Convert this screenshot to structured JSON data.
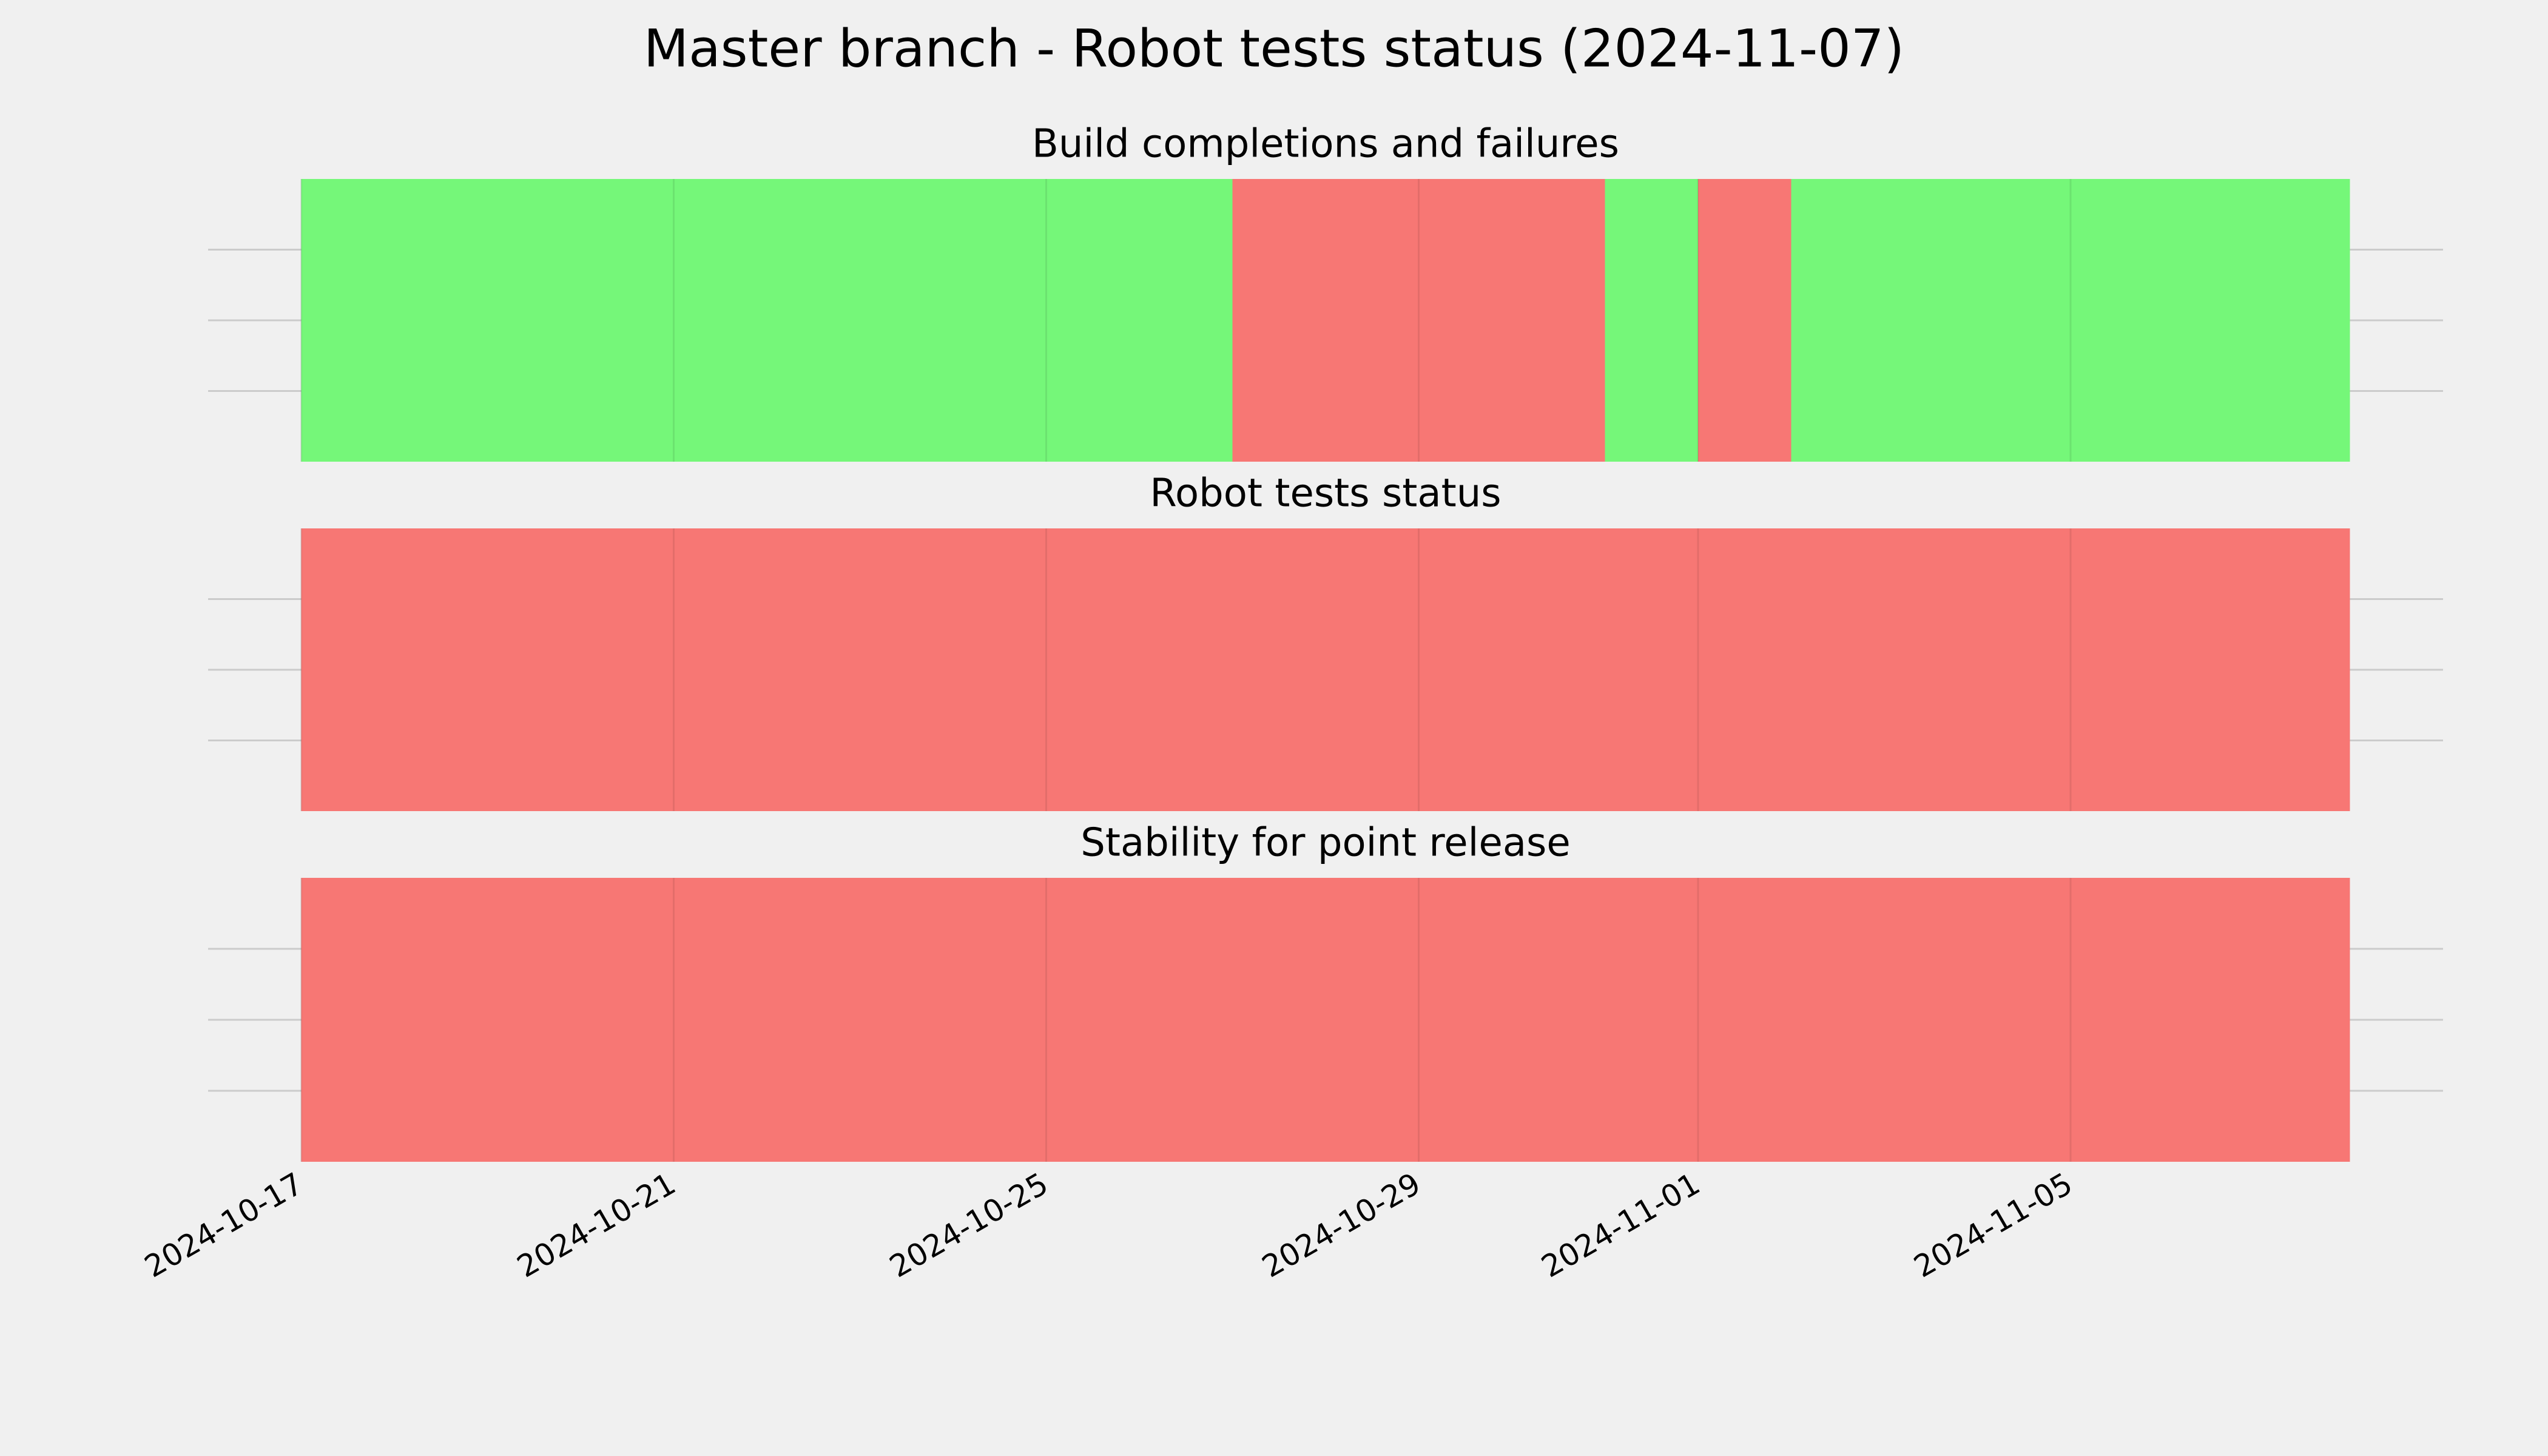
{
  "chart_data": {
    "type": "timeline",
    "title": "Master branch - Robot tests status (2024-11-07)",
    "xlim": [
      "2024-10-16",
      "2024-11-09"
    ],
    "xticks": [
      "2024-10-17",
      "2024-10-21",
      "2024-10-25",
      "2024-10-29",
      "2024-11-01",
      "2024-11-05"
    ],
    "grid": true,
    "panels": [
      {
        "title": "Build completions and failures",
        "spans": [
          {
            "start": "2024-10-17",
            "end": "2024-10-27",
            "color": "#75f779"
          },
          {
            "start": "2024-10-27",
            "end": "2024-10-31",
            "color": "#f77774"
          },
          {
            "start": "2024-10-31",
            "end": "2024-11-01",
            "color": "#75f779"
          },
          {
            "start": "2024-11-01",
            "end": "2024-11-02",
            "color": "#f77774"
          },
          {
            "start": "2024-11-02",
            "end": "2024-11-08",
            "color": "#75f779"
          }
        ]
      },
      {
        "title": "Robot tests status",
        "spans": [
          {
            "start": "2024-10-17",
            "end": "2024-11-08",
            "color": "#f77774"
          }
        ]
      },
      {
        "title": "Stability for point release",
        "spans": [
          {
            "start": "2024-10-17",
            "end": "2024-11-08",
            "color": "#f77774"
          }
        ]
      }
    ]
  }
}
